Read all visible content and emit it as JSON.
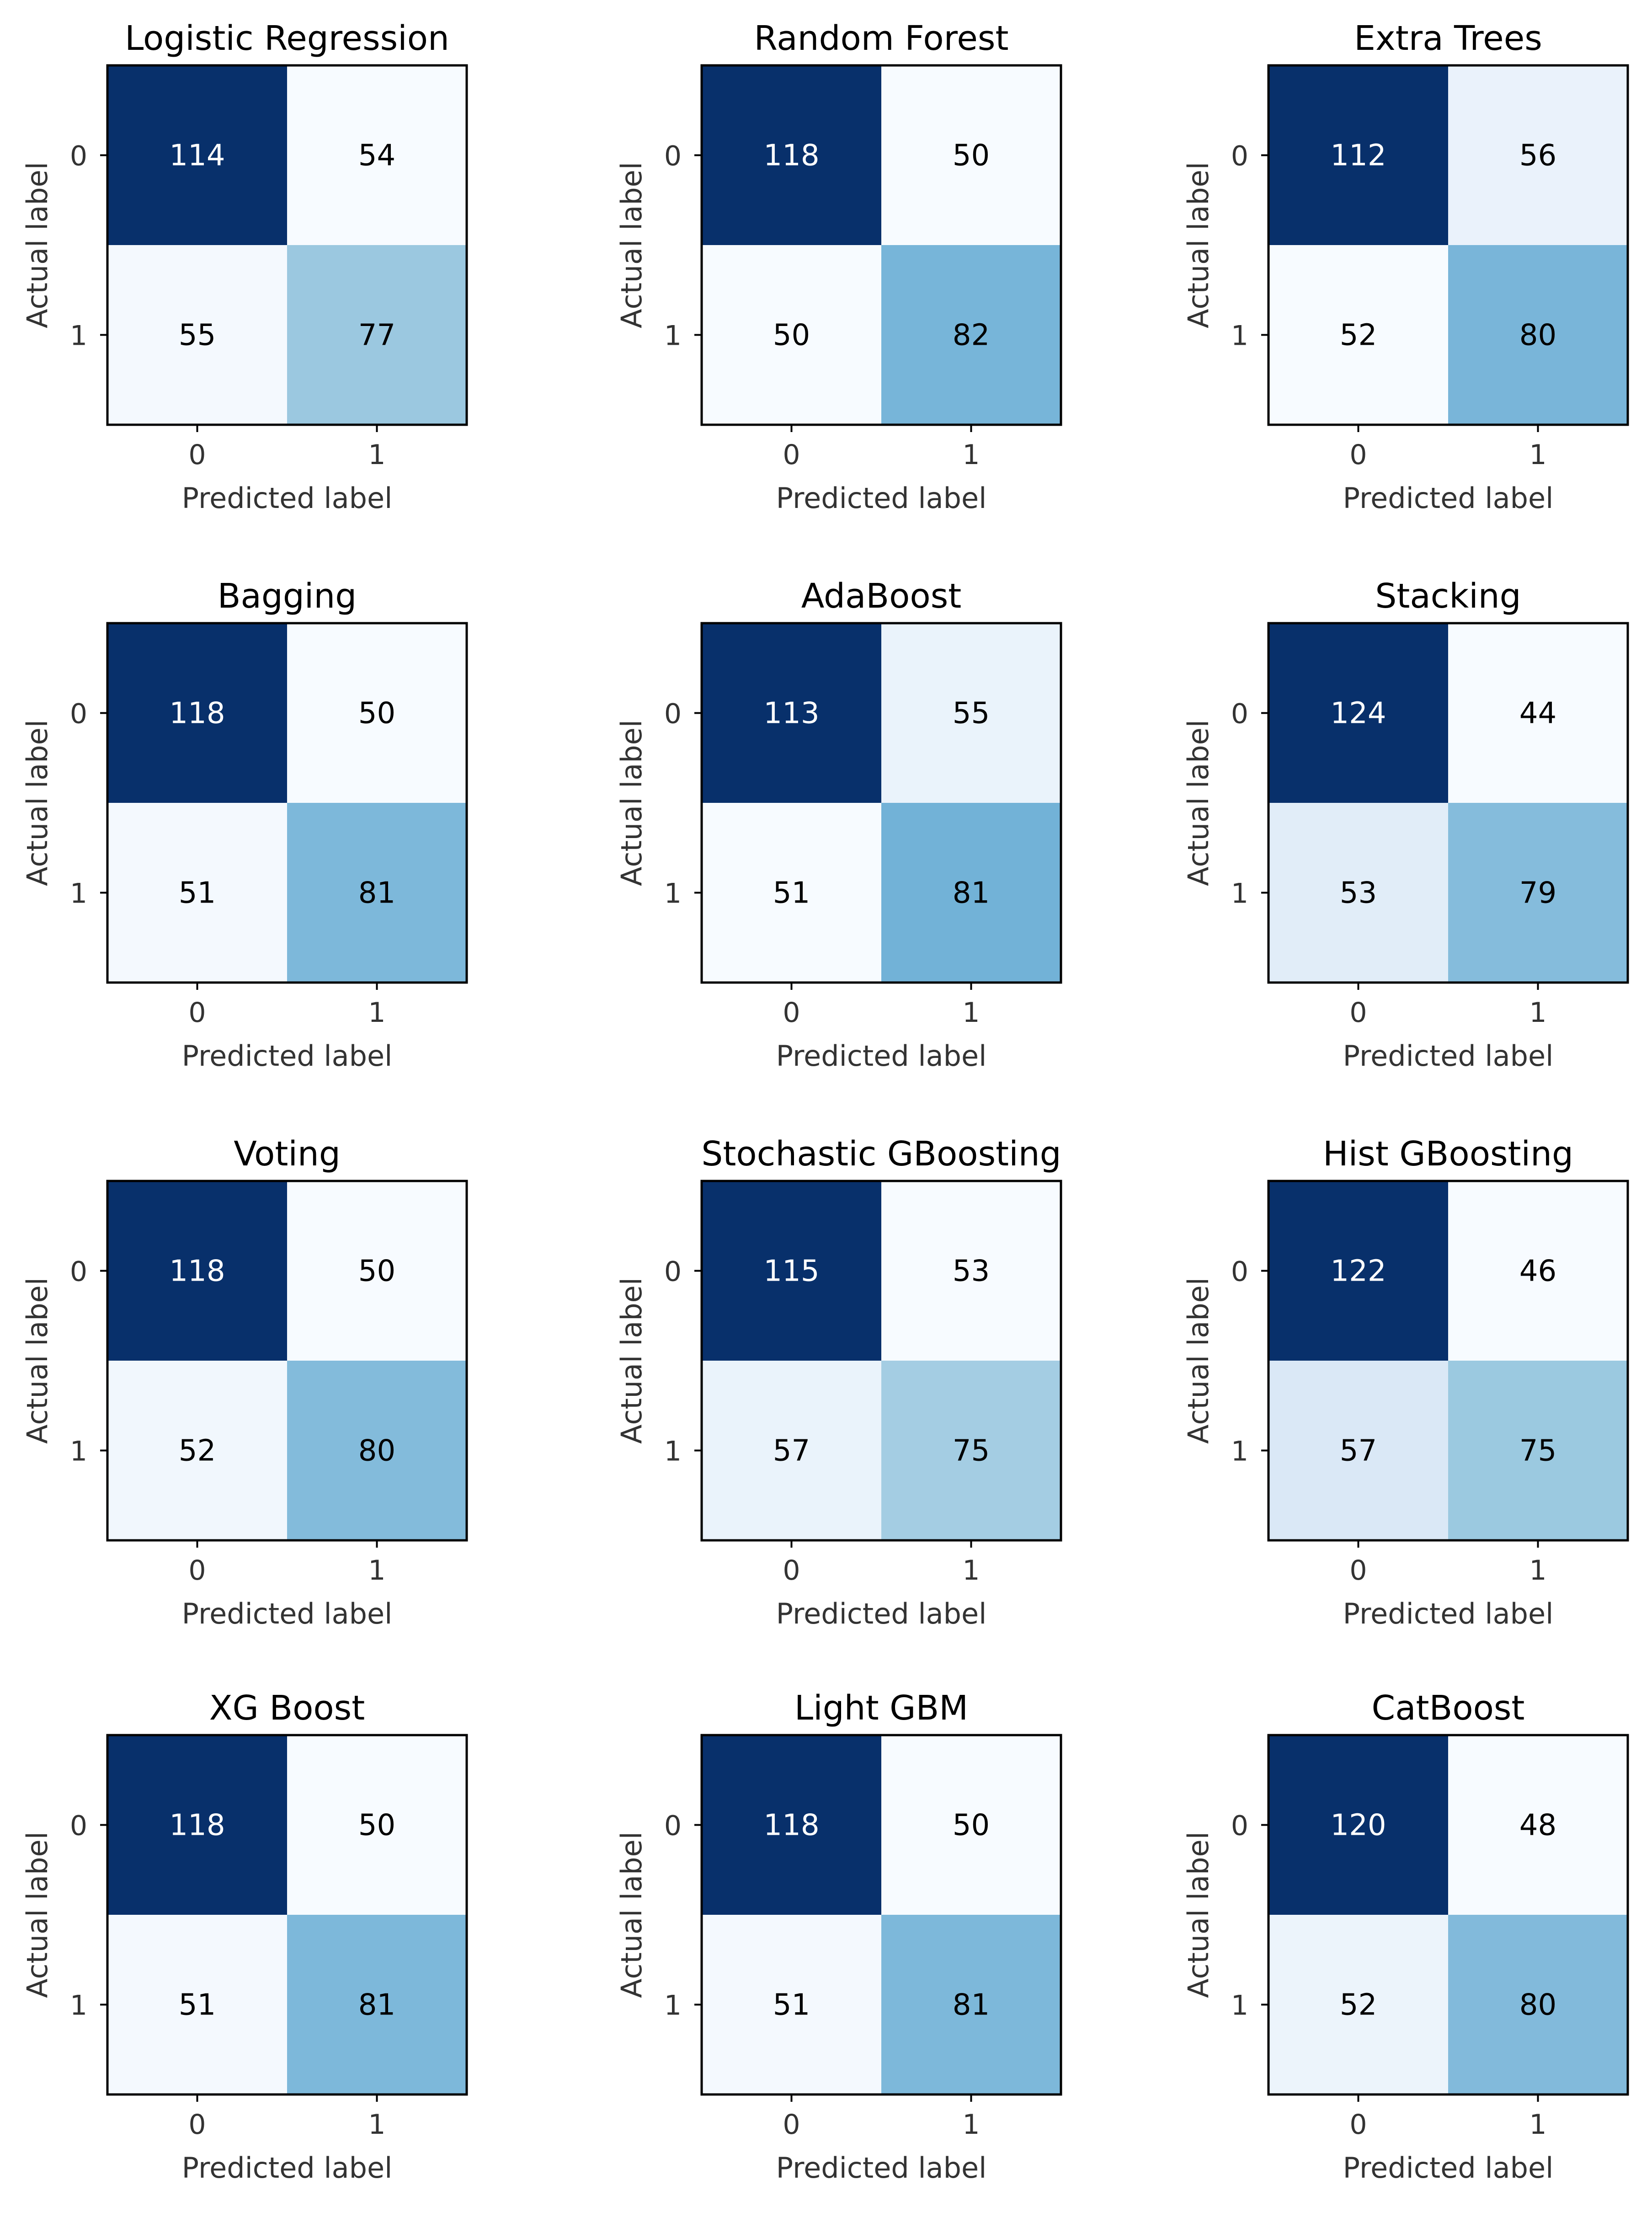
{
  "chart_data": [
    {
      "type": "heatmap",
      "title": "Logistic Regression",
      "xlabel": "Predicted label",
      "ylabel": "Actual label",
      "x_ticks": [
        "0",
        "1"
      ],
      "y_ticks": [
        "0",
        "1"
      ],
      "colormap": "Blues",
      "matrix": [
        [
          114,
          54
        ],
        [
          55,
          77
        ]
      ]
    },
    {
      "type": "heatmap",
      "title": "Random Forest",
      "xlabel": "Predicted label",
      "ylabel": "Actual label",
      "x_ticks": [
        "0",
        "1"
      ],
      "y_ticks": [
        "0",
        "1"
      ],
      "colormap": "Blues",
      "matrix": [
        [
          118,
          50
        ],
        [
          50,
          82
        ]
      ]
    },
    {
      "type": "heatmap",
      "title": "Extra Trees",
      "xlabel": "Predicted label",
      "ylabel": "Actual label",
      "x_ticks": [
        "0",
        "1"
      ],
      "y_ticks": [
        "0",
        "1"
      ],
      "colormap": "Blues",
      "matrix": [
        [
          112,
          56
        ],
        [
          52,
          80
        ]
      ]
    },
    {
      "type": "heatmap",
      "title": "Bagging",
      "xlabel": "Predicted label",
      "ylabel": "Actual label",
      "x_ticks": [
        "0",
        "1"
      ],
      "y_ticks": [
        "0",
        "1"
      ],
      "colormap": "Blues",
      "matrix": [
        [
          118,
          50
        ],
        [
          51,
          81
        ]
      ]
    },
    {
      "type": "heatmap",
      "title": "AdaBoost",
      "xlabel": "Predicted label",
      "ylabel": "Actual label",
      "x_ticks": [
        "0",
        "1"
      ],
      "y_ticks": [
        "0",
        "1"
      ],
      "colormap": "Blues",
      "matrix": [
        [
          113,
          55
        ],
        [
          51,
          81
        ]
      ]
    },
    {
      "type": "heatmap",
      "title": "Stacking",
      "xlabel": "Predicted label",
      "ylabel": "Actual label",
      "x_ticks": [
        "0",
        "1"
      ],
      "y_ticks": [
        "0",
        "1"
      ],
      "colormap": "Blues",
      "matrix": [
        [
          124,
          44
        ],
        [
          53,
          79
        ]
      ]
    },
    {
      "type": "heatmap",
      "title": "Voting",
      "xlabel": "Predicted label",
      "ylabel": "Actual label",
      "x_ticks": [
        "0",
        "1"
      ],
      "y_ticks": [
        "0",
        "1"
      ],
      "colormap": "Blues",
      "matrix": [
        [
          118,
          50
        ],
        [
          52,
          80
        ]
      ]
    },
    {
      "type": "heatmap",
      "title": "Stochastic GBoosting",
      "xlabel": "Predicted label",
      "ylabel": "Actual label",
      "x_ticks": [
        "0",
        "1"
      ],
      "y_ticks": [
        "0",
        "1"
      ],
      "colormap": "Blues",
      "matrix": [
        [
          115,
          53
        ],
        [
          57,
          75
        ]
      ]
    },
    {
      "type": "heatmap",
      "title": "Hist GBoosting",
      "xlabel": "Predicted label",
      "ylabel": "Actual label",
      "x_ticks": [
        "0",
        "1"
      ],
      "y_ticks": [
        "0",
        "1"
      ],
      "colormap": "Blues",
      "matrix": [
        [
          122,
          46
        ],
        [
          57,
          75
        ]
      ]
    },
    {
      "type": "heatmap",
      "title": "XG Boost",
      "xlabel": "Predicted label",
      "ylabel": "Actual label",
      "x_ticks": [
        "0",
        "1"
      ],
      "y_ticks": [
        "0",
        "1"
      ],
      "colormap": "Blues",
      "matrix": [
        [
          118,
          50
        ],
        [
          51,
          81
        ]
      ]
    },
    {
      "type": "heatmap",
      "title": "Light GBM",
      "xlabel": "Predicted label",
      "ylabel": "Actual label",
      "x_ticks": [
        "0",
        "1"
      ],
      "y_ticks": [
        "0",
        "1"
      ],
      "colormap": "Blues",
      "matrix": [
        [
          118,
          50
        ],
        [
          51,
          81
        ]
      ]
    },
    {
      "type": "heatmap",
      "title": "CatBoost",
      "xlabel": "Predicted label",
      "ylabel": "Actual label",
      "x_ticks": [
        "0",
        "1"
      ],
      "y_ticks": [
        "0",
        "1"
      ],
      "colormap": "Blues",
      "matrix": [
        [
          120,
          48
        ],
        [
          52,
          80
        ]
      ]
    }
  ],
  "colors": {
    "blues": [
      "#f7fbff",
      "#deebf7",
      "#c6dbef",
      "#9ecae1",
      "#6baed6",
      "#4292c6",
      "#2171b5",
      "#08519c",
      "#08306b"
    ],
    "text_on_dark": "#ffffff",
    "text_on_light": "#000000"
  }
}
